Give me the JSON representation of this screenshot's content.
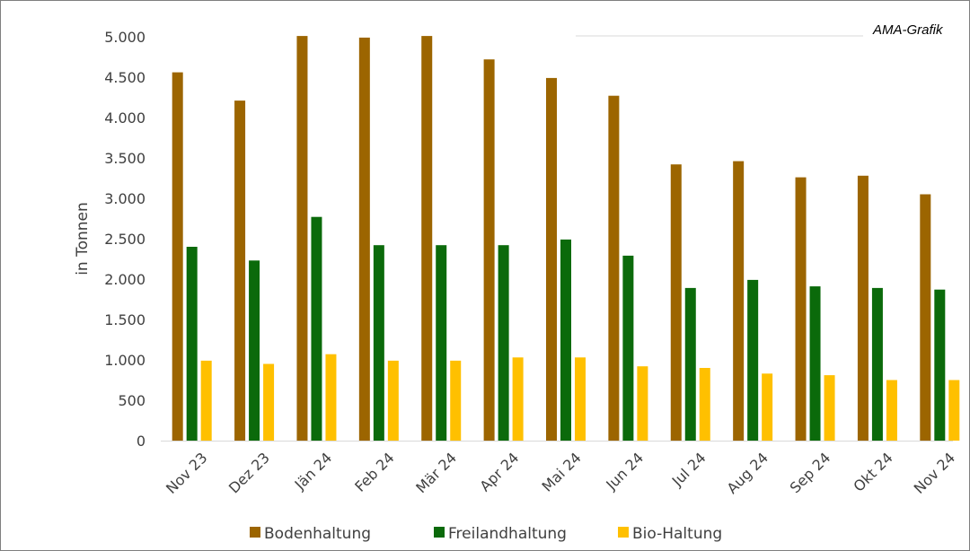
{
  "chart_data": {
    "type": "bar",
    "credit": "AMA-Grafik",
    "ylabel": "in Tonnen",
    "xlabel": "",
    "ylim": [
      0,
      5000
    ],
    "yticks": [
      0,
      500,
      1000,
      1500,
      2000,
      2500,
      3000,
      3500,
      4000,
      4500,
      5000
    ],
    "ytick_labels": [
      "0",
      "500",
      "1.000",
      "1.500",
      "2.000",
      "2.500",
      "3.000",
      "3.500",
      "4.000",
      "4.500",
      "5.000"
    ],
    "grid": false,
    "legend_position": "bottom",
    "categories": [
      "Nov 23",
      "Dez 23",
      "Jän 24",
      "Feb 24",
      "Mär 24",
      "Apr 24",
      "Mai 24",
      "Jun 24",
      "Jul 24",
      "Aug 24",
      "Sep 24",
      "Okt 24",
      "Nov 24"
    ],
    "series": [
      {
        "name": "Bodenhaltung",
        "color": "#9c6500",
        "values": [
          4560,
          4210,
          5010,
          4990,
          5010,
          4720,
          4490,
          4270,
          3420,
          3460,
          3260,
          3280,
          3050
        ]
      },
      {
        "name": "Freilandhaltung",
        "color": "#0b6a0b",
        "values": [
          2400,
          2230,
          2770,
          2420,
          2420,
          2420,
          2490,
          2290,
          1890,
          1990,
          1910,
          1890,
          1870
        ]
      },
      {
        "name": "Bio-Haltung",
        "color": "#ffc000",
        "values": [
          990,
          950,
          1070,
          990,
          990,
          1030,
          1030,
          920,
          900,
          830,
          810,
          750,
          750
        ]
      }
    ]
  }
}
